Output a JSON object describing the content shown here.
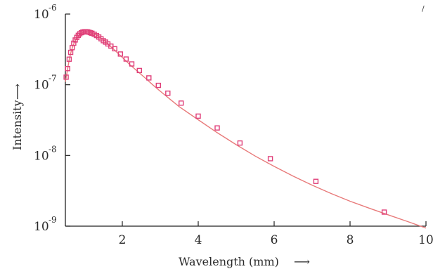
{
  "chart_data": {
    "type": "scatter",
    "x_axis": {
      "label": "Wavelength (mm)",
      "arrow": "⟶",
      "ticks": [
        "2",
        "4",
        "6",
        "8",
        "10"
      ],
      "range": [
        0.5,
        10
      ]
    },
    "y_axis": {
      "label": "Intensity",
      "arrow": "⟶",
      "scale": "log",
      "ticks": [
        {
          "base": "10",
          "exp": "-6",
          "value": 1e-06
        },
        {
          "base": "10",
          "exp": "-7",
          "value": 1e-07
        },
        {
          "base": "10",
          "exp": "-8",
          "value": 1e-08
        },
        {
          "base": "10",
          "exp": "-9",
          "value": 1e-09
        }
      ],
      "range": [
        1e-09,
        1e-06
      ]
    },
    "series": [
      {
        "kind": "fit-line",
        "color": "#e87a7a",
        "x": [
          0.5,
          0.55,
          0.6,
          0.65,
          0.7,
          0.75,
          0.8,
          0.85,
          0.9,
          0.95,
          1.0,
          1.05,
          1.1,
          1.15,
          1.2,
          1.3,
          1.4,
          1.5,
          1.6,
          1.8,
          2.0,
          2.2,
          2.4,
          2.6,
          2.8,
          3.0,
          3.25,
          3.5,
          4.0,
          4.5,
          5.0,
          5.5,
          6.0,
          6.5,
          7.0,
          7.5,
          8.0,
          8.5,
          9.0,
          9.5,
          10.0
        ],
        "y": [
          1.1e-07,
          1.56e-07,
          2.25e-07,
          2.93e-07,
          3.55e-07,
          4.14e-07,
          4.61e-07,
          4.98e-07,
          5.26e-07,
          5.48e-07,
          5.57e-07,
          5.61e-07,
          5.59e-07,
          5.5e-07,
          5.37e-07,
          5.07e-07,
          4.7e-07,
          4.3e-07,
          3.84e-07,
          3.08e-07,
          2.43e-07,
          1.92e-07,
          1.55e-07,
          1.25e-07,
          1e-07,
          8.1e-08,
          6.3e-08,
          4.9e-08,
          3.2e-08,
          2.1e-08,
          1.42e-08,
          9.8e-09,
          7e-09,
          5.1e-09,
          3.8e-09,
          2.9e-09,
          2.25e-09,
          1.8e-09,
          1.45e-09,
          1.17e-09,
          9.4e-10
        ]
      },
      {
        "kind": "data-points",
        "color": "#e0407a",
        "x": [
          0.52,
          0.56,
          0.6,
          0.64,
          0.68,
          0.72,
          0.76,
          0.8,
          0.84,
          0.88,
          0.92,
          0.96,
          1.0,
          1.04,
          1.08,
          1.12,
          1.16,
          1.2,
          1.26,
          1.32,
          1.38,
          1.44,
          1.5,
          1.56,
          1.62,
          1.7,
          1.8,
          1.95,
          2.1,
          2.25,
          2.45,
          2.7,
          2.95,
          3.2,
          3.55,
          4.0,
          4.5,
          5.1,
          5.9,
          7.1,
          8.9
        ],
        "y": [
          1.28e-07,
          1.69e-07,
          2.3e-07,
          2.87e-07,
          3.35e-07,
          3.87e-07,
          4.3e-07,
          4.68e-07,
          5e-07,
          5.26e-07,
          5.45e-07,
          5.56e-07,
          5.62e-07,
          5.63e-07,
          5.6e-07,
          5.54e-07,
          5.45e-07,
          5.35e-07,
          5.18e-07,
          4.97e-07,
          4.73e-07,
          4.47e-07,
          4.2e-07,
          4.01e-07,
          3.78e-07,
          3.52e-07,
          3.23e-07,
          2.72e-07,
          2.31e-07,
          1.97e-07,
          1.59e-07,
          1.25e-07,
          9.8e-08,
          7.6e-08,
          5.5e-08,
          3.6e-08,
          2.45e-08,
          1.5e-08,
          9e-09,
          4.3e-09,
          1.58e-09
        ]
      }
    ]
  },
  "stray_mark": "/"
}
